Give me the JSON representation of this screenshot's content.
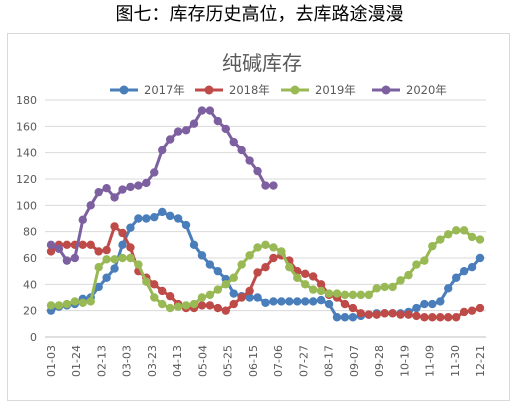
{
  "caption": "图七：库存历史高位，去库路途漫漫",
  "chart_data": {
    "type": "line",
    "title": "纯碱库存",
    "xlabel": "",
    "ylabel": "",
    "ylim": [
      0,
      180
    ],
    "yticks": [
      0,
      20,
      40,
      60,
      80,
      100,
      120,
      140,
      160,
      180
    ],
    "x_tick_labels": [
      "01-03",
      "01-24",
      "02-13",
      "03-03",
      "03-23",
      "04-13",
      "05-04",
      "05-25",
      "06-15",
      "07-06",
      "07-27",
      "08-17",
      "09-07",
      "09-28",
      "10-19",
      "11-09",
      "11-30",
      "12-21"
    ],
    "grid": "horizontal",
    "legend_position": "top",
    "series": [
      {
        "name": "2017年",
        "color": "#4a7ebb",
        "values": [
          20,
          23,
          24,
          25,
          29,
          30,
          38,
          45,
          52,
          70,
          83,
          90,
          90,
          91,
          95,
          92,
          90,
          85,
          70,
          62,
          55,
          50,
          44,
          33,
          31,
          30,
          30,
          26,
          27,
          27,
          27,
          27,
          27,
          27,
          28,
          25,
          15,
          15,
          15,
          16,
          17,
          18,
          18,
          18,
          18,
          19,
          22,
          25,
          25,
          27,
          37,
          45,
          50,
          53,
          60
        ]
      },
      {
        "name": "2018年",
        "color": "#be4b48",
        "values": [
          65,
          70,
          70,
          70,
          70,
          70,
          65,
          66,
          84,
          79,
          68,
          50,
          45,
          40,
          35,
          31,
          25,
          22,
          22,
          24,
          24,
          22,
          20,
          25,
          30,
          35,
          49,
          53,
          60,
          62,
          58,
          50,
          48,
          46,
          40,
          32,
          30,
          25,
          22,
          18,
          17,
          17,
          18,
          18,
          17,
          17,
          16,
          15,
          15,
          15,
          15,
          15,
          19,
          20,
          22
        ]
      },
      {
        "name": "2019年",
        "color": "#98b954",
        "values": [
          24,
          24,
          25,
          27,
          26,
          27,
          53,
          59,
          59,
          60,
          60,
          55,
          42,
          30,
          25,
          22,
          23,
          24,
          25,
          30,
          32,
          36,
          40,
          45,
          55,
          62,
          68,
          70,
          68,
          65,
          53,
          45,
          40,
          36,
          35,
          33,
          33,
          32,
          32,
          32,
          32,
          37,
          38,
          38,
          43,
          47,
          55,
          58,
          69,
          74,
          78,
          81,
          81,
          76,
          74
        ]
      },
      {
        "name": "2020年",
        "color": "#7d60a0",
        "values": [
          70,
          67,
          58,
          60,
          89,
          100,
          110,
          113,
          106,
          112,
          114,
          115,
          117,
          125,
          142,
          150,
          156,
          157,
          162,
          172,
          172,
          164,
          158,
          148,
          142,
          134,
          126,
          115,
          115
        ]
      }
    ]
  }
}
